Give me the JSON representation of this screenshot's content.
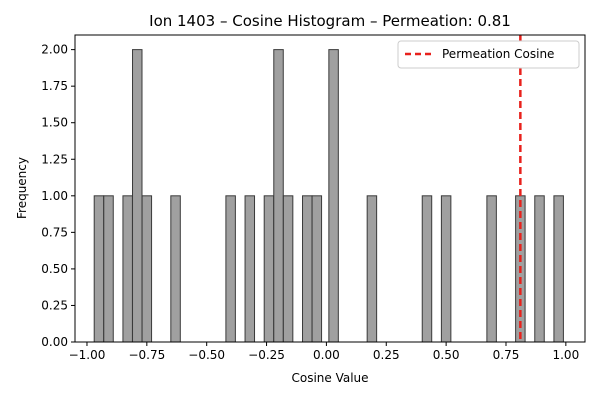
{
  "chart_data": {
    "type": "bar",
    "title": "Ion 1403 – Cosine Histogram – Permeation: 0.81",
    "xlabel": "Cosine Value",
    "ylabel": "Frequency",
    "xlim": [
      -1.05,
      1.08
    ],
    "ylim": [
      0,
      2.1
    ],
    "xticks": [
      "−1.00",
      "−0.75",
      "−0.50",
      "−0.25",
      "0.00",
      "0.25",
      "0.50",
      "0.75",
      "1.00"
    ],
    "xtick_values": [
      -1.0,
      -0.75,
      -0.5,
      -0.25,
      0.0,
      0.25,
      0.5,
      0.75,
      1.0
    ],
    "yticks": [
      "0.00",
      "0.25",
      "0.50",
      "0.75",
      "1.00",
      "1.25",
      "1.50",
      "1.75",
      "2.00"
    ],
    "ytick_values": [
      0,
      0.25,
      0.5,
      0.75,
      1.0,
      1.25,
      1.5,
      1.75,
      2.0
    ],
    "bin_width": 0.0396,
    "bins": [
      {
        "x": -0.95,
        "count": 1
      },
      {
        "x": -0.91,
        "count": 1
      },
      {
        "x": -0.83,
        "count": 1
      },
      {
        "x": -0.79,
        "count": 2
      },
      {
        "x": -0.75,
        "count": 1
      },
      {
        "x": -0.63,
        "count": 1
      },
      {
        "x": -0.4,
        "count": 1
      },
      {
        "x": -0.32,
        "count": 1
      },
      {
        "x": -0.24,
        "count": 1
      },
      {
        "x": -0.2,
        "count": 2
      },
      {
        "x": -0.16,
        "count": 1
      },
      {
        "x": -0.08,
        "count": 1
      },
      {
        "x": -0.04,
        "count": 1
      },
      {
        "x": 0.03,
        "count": 2
      },
      {
        "x": 0.19,
        "count": 1
      },
      {
        "x": 0.42,
        "count": 1
      },
      {
        "x": 0.5,
        "count": 1
      },
      {
        "x": 0.69,
        "count": 1
      },
      {
        "x": 0.81,
        "count": 1
      },
      {
        "x": 0.89,
        "count": 1
      },
      {
        "x": 0.97,
        "count": 1
      }
    ],
    "permeation_line": {
      "value": 0.81,
      "label": "Permeation Cosine",
      "color": "#e8211c",
      "style": "dashed"
    },
    "bar_color": "#a0a0a0",
    "bar_edge_color": "#3a3a3a",
    "legend_position": "top-right",
    "grid": false
  }
}
